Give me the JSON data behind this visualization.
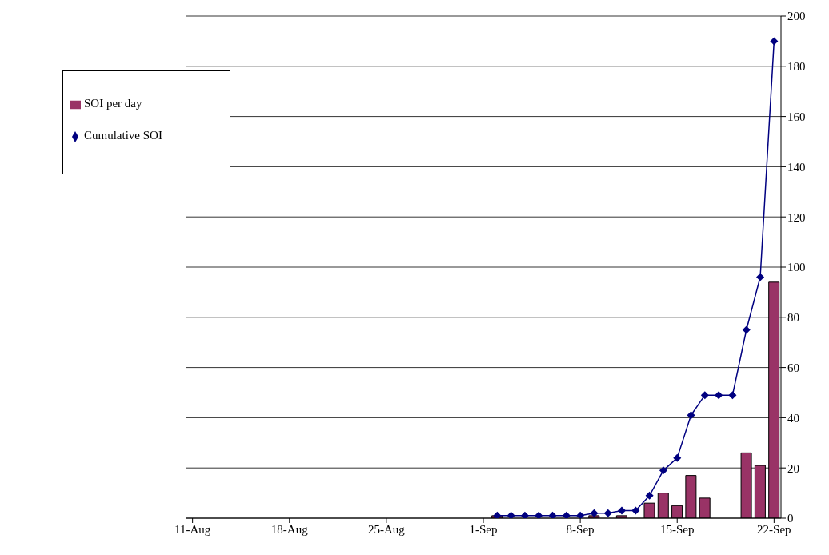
{
  "chart_data": {
    "type": "bar",
    "x": [
      "--09-02",
      "--09-03",
      "--09-04",
      "--09-05",
      "--09-06",
      "--09-07",
      "--09-08",
      "--09-09",
      "--09-10",
      "--09-11",
      "--09-12",
      "--09-13",
      "--09-14",
      "--09-15",
      "--09-16",
      "--09-17",
      "--09-18",
      "--09-19",
      "--09-20",
      "--09-21",
      "--09-22"
    ],
    "series": [
      {
        "name": "SOI per day",
        "color": "#993366",
        "values": [
          1,
          null,
          null,
          null,
          null,
          null,
          null,
          1,
          null,
          1,
          null,
          6,
          10,
          5,
          17,
          8,
          null,
          null,
          26,
          21,
          94
        ]
      },
      {
        "name": "Cumulative SOI",
        "type": "line",
        "color": "#000080",
        "values": [
          1,
          1,
          1,
          1,
          1,
          1,
          1,
          2,
          2,
          3,
          3,
          9,
          19,
          24,
          41,
          49,
          49,
          49,
          75,
          96,
          190
        ]
      }
    ],
    "xlim": [
      "--08-10T12:00",
      "--09-22T12:00"
    ],
    "xticks": [
      {
        "value": "--08-11",
        "label": "11-Aug"
      },
      {
        "value": "--08-18",
        "label": "18-Aug"
      },
      {
        "value": "--08-25",
        "label": "25-Aug"
      },
      {
        "value": "--09-01",
        "label": "1-Sep"
      },
      {
        "value": "--09-08",
        "label": "8-Sep"
      },
      {
        "value": "--09-15",
        "label": "15-Sep"
      },
      {
        "value": "--09-22",
        "label": "22-Sep"
      }
    ],
    "ylim": [
      0,
      200
    ],
    "yticks": [
      0,
      20,
      40,
      60,
      80,
      100,
      120,
      140,
      160,
      180,
      200
    ],
    "grid": "y",
    "legend": "top left",
    "marker": "diamond",
    "line_style": "solid"
  }
}
